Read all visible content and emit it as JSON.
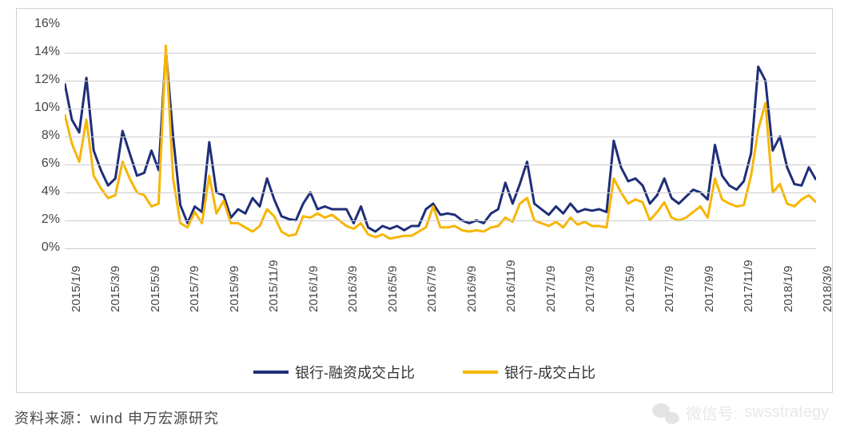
{
  "chart": {
    "type": "line",
    "background_color": "#ffffff",
    "border_color": "#d0d0d0",
    "grid_color": "#cccccc",
    "axis_label_color": "#444444",
    "axis_fontsize": 16,
    "ylim": [
      0,
      16
    ],
    "ytick_step": 2,
    "ytick_suffix": "%",
    "x_categories": [
      "2015/1/9",
      "2015/3/9",
      "2015/5/9",
      "2015/7/9",
      "2015/9/9",
      "2015/11/9",
      "2016/1/9",
      "2016/3/9",
      "2016/5/9",
      "2016/7/9",
      "2016/9/9",
      "2016/11/9",
      "2017/1/9",
      "2017/3/9",
      "2017/5/9",
      "2017/7/9",
      "2017/9/9",
      "2017/11/9",
      "2018/1/9",
      "2018/3/9"
    ],
    "x_tick_rotation": -90,
    "line_width": 3,
    "series": [
      {
        "name": "银行-融资成交占比",
        "color": "#1f2e79",
        "points": [
          11.8,
          9.2,
          8.3,
          12.2,
          7.0,
          5.6,
          4.5,
          5.0,
          8.4,
          6.8,
          5.2,
          5.4,
          7.0,
          5.6,
          14.2,
          8.0,
          3.1,
          1.8,
          3.0,
          2.6,
          7.6,
          4.0,
          3.8,
          2.2,
          2.8,
          2.5,
          3.6,
          3.0,
          5.0,
          3.5,
          2.3,
          2.1,
          2.0,
          3.2,
          4.0,
          2.8,
          3.0,
          2.8,
          2.8,
          2.8,
          1.8,
          3.0,
          1.5,
          1.2,
          1.6,
          1.4,
          1.6,
          1.3,
          1.6,
          1.6,
          2.8,
          3.2,
          2.4,
          2.5,
          2.4,
          2.0,
          1.8,
          2.0,
          1.8,
          2.5,
          2.8,
          4.7,
          3.2,
          4.6,
          6.2,
          3.2,
          2.8,
          2.4,
          3.0,
          2.5,
          3.2,
          2.6,
          2.8,
          2.7,
          2.8,
          2.6,
          7.7,
          5.8,
          4.8,
          5.0,
          4.5,
          3.2,
          3.8,
          5.0,
          3.6,
          3.2,
          3.7,
          4.2,
          4.0,
          3.5,
          7.4,
          5.2,
          4.5,
          4.2,
          4.8,
          6.8,
          13.0,
          12.0,
          7.0,
          8.0,
          5.8,
          4.6,
          4.5,
          5.8,
          4.9
        ]
      },
      {
        "name": "银行-成交占比",
        "color": "#f7b500",
        "points": [
          9.6,
          7.5,
          6.2,
          9.2,
          5.2,
          4.3,
          3.6,
          3.8,
          6.2,
          5.0,
          4.0,
          3.8,
          3.0,
          3.2,
          14.5,
          5.0,
          1.8,
          1.5,
          2.6,
          1.8,
          5.2,
          2.5,
          3.4,
          1.8,
          1.8,
          1.5,
          1.2,
          1.6,
          2.8,
          2.3,
          1.2,
          0.9,
          1.0,
          2.3,
          2.2,
          2.5,
          2.2,
          2.4,
          2.0,
          1.6,
          1.4,
          1.8,
          1.0,
          0.8,
          1.0,
          0.7,
          0.8,
          0.9,
          0.9,
          1.2,
          1.5,
          3.0,
          1.5,
          1.5,
          1.6,
          1.3,
          1.2,
          1.3,
          1.2,
          1.5,
          1.6,
          2.2,
          1.9,
          3.2,
          3.6,
          2.0,
          1.8,
          1.6,
          1.9,
          1.5,
          2.2,
          1.7,
          1.9,
          1.6,
          1.6,
          1.5,
          5.0,
          4.0,
          3.2,
          3.5,
          3.3,
          2.0,
          2.6,
          3.3,
          2.2,
          2.0,
          2.2,
          2.6,
          3.0,
          2.2,
          5.0,
          3.5,
          3.2,
          3.0,
          3.1,
          5.2,
          8.5,
          10.4,
          4.0,
          4.6,
          3.2,
          3.0,
          3.5,
          3.8,
          3.3
        ]
      }
    ]
  },
  "footer": {
    "source_label": "资料来源：wind 申万宏源研究"
  },
  "watermark": {
    "prefix": "微信号:",
    "id": "swsstrategy"
  }
}
